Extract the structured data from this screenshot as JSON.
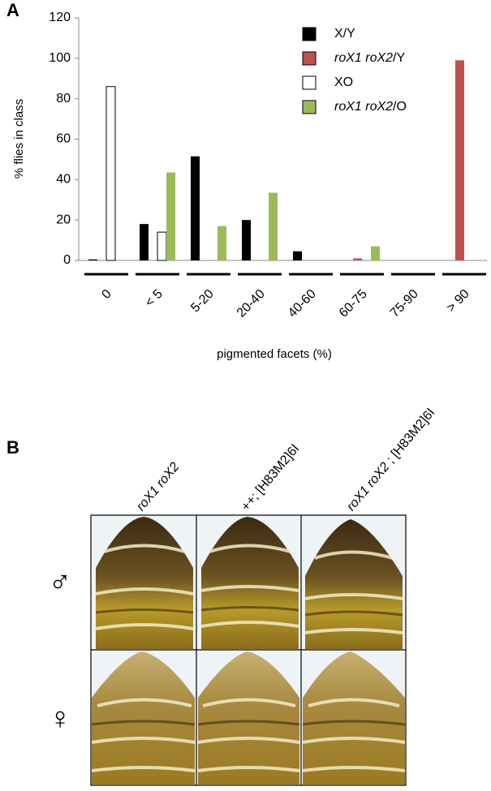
{
  "panel_a_label": "A",
  "panel_b_label": "B",
  "chart_data": {
    "type": "bar",
    "y_label": "% flies in class",
    "x_label": "pigmented facets (%)",
    "categories": [
      "0",
      "< 5",
      "5-20",
      "20-40",
      "40-60",
      "60-75",
      "75-90",
      "> 90"
    ],
    "series": [
      {
        "name": "X/Y",
        "color": "#000000",
        "values": [
          0.5,
          18,
          51.5,
          20,
          4.5,
          0,
          0,
          0
        ]
      },
      {
        "name": "roX1 roX2/Y",
        "color": "#c0504d",
        "values": [
          0,
          0,
          0,
          0,
          0,
          1,
          0,
          99
        ]
      },
      {
        "name": "XO",
        "color": "#ffffff",
        "values": [
          86,
          14,
          0,
          0,
          0,
          0,
          0,
          0
        ]
      },
      {
        "name": "roX1 roX2/O",
        "color": "#9bbb59",
        "values": [
          0,
          43.5,
          17,
          33.5,
          0,
          7,
          0,
          0
        ]
      }
    ],
    "ylim": [
      0,
      120
    ],
    "yticks": [
      0,
      20,
      40,
      60,
      80,
      100,
      120
    ],
    "grid": false,
    "legend": "upper right"
  },
  "images": {
    "columns": [
      "roX1 roX2",
      "++; [H83M2]6I",
      "roX1 roX2 ; [H83M2]6I"
    ],
    "rows": [
      "♂",
      "♀"
    ]
  }
}
